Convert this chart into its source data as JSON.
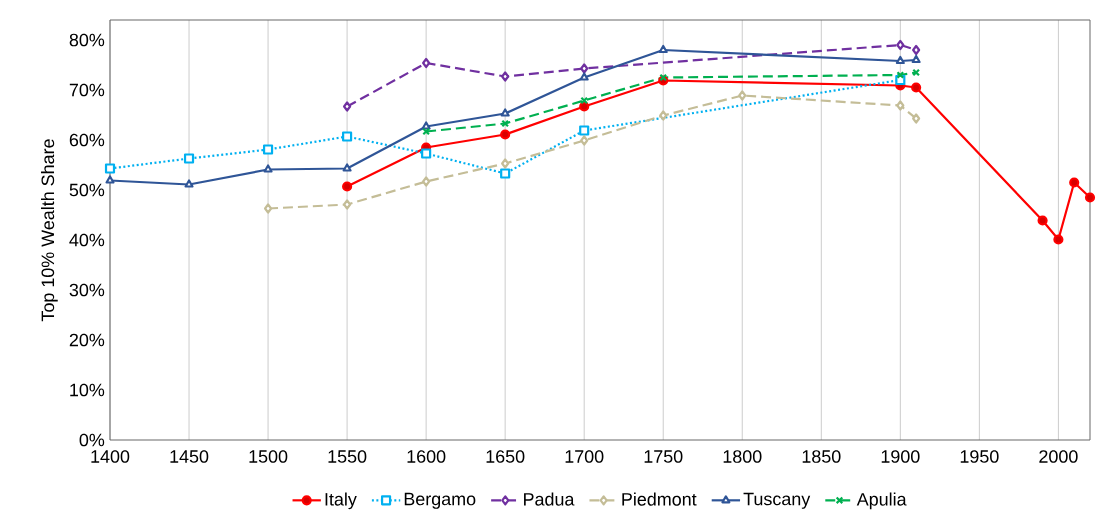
{
  "chart_data": {
    "type": "line",
    "ylabel": "Top 10% Wealth Share",
    "xlim": [
      1400,
      2020
    ],
    "xticks": [
      1400,
      1450,
      1500,
      1550,
      1600,
      1650,
      1700,
      1750,
      1800,
      1850,
      1900,
      1950,
      2000
    ],
    "ylim": [
      0,
      84
    ],
    "yticks": [
      {
        "value": 0,
        "label": "0%"
      },
      {
        "value": 10,
        "label": "10%"
      },
      {
        "value": 20,
        "label": "20%"
      },
      {
        "value": 30,
        "label": "30%"
      },
      {
        "value": 40,
        "label": "40%"
      },
      {
        "value": 50,
        "label": "50%"
      },
      {
        "value": 60,
        "label": "60%"
      },
      {
        "value": 70,
        "label": "70%"
      },
      {
        "value": 80,
        "label": "80%"
      }
    ],
    "grid": "x",
    "legend": "bottom",
    "series": [
      {
        "name": "Italy",
        "color": "#ff0000",
        "marker": "circle",
        "line_style": "solid",
        "x": [
          1550,
          1600,
          1650,
          1700,
          1750,
          1900,
          1910,
          1990,
          2000,
          2010,
          2020
        ],
        "values": [
          50.7,
          58.5,
          61.1,
          66.7,
          71.9,
          70.9,
          70.5,
          43.9,
          40.1,
          51.5,
          48.5
        ]
      },
      {
        "name": "Bergamo",
        "color": "#00b0f0",
        "marker": "square",
        "line_style": "dotted",
        "x": [
          1400,
          1450,
          1500,
          1550,
          1600,
          1650,
          1700,
          1900
        ],
        "values": [
          54.3,
          56.3,
          58.1,
          60.7,
          57.3,
          53.3,
          61.9,
          72.0
        ]
      },
      {
        "name": "Padua",
        "color": "#7030a0",
        "marker": "diamond",
        "line_style": "dashed",
        "x": [
          1550,
          1600,
          1650,
          1700,
          1900,
          1910
        ],
        "values": [
          66.7,
          75.4,
          72.7,
          74.3,
          79.0,
          78.0
        ]
      },
      {
        "name": "Piedmont",
        "color": "#c4bd97",
        "marker": "diamond",
        "line_style": "dashed",
        "x": [
          1500,
          1550,
          1600,
          1650,
          1700,
          1750,
          1800,
          1900,
          1910
        ],
        "values": [
          46.3,
          47.1,
          51.7,
          55.3,
          59.9,
          64.9,
          68.9,
          66.9,
          64.3
        ]
      },
      {
        "name": "Tuscany",
        "color": "#2f5597",
        "marker": "triangle",
        "line_style": "solid",
        "x": [
          1400,
          1450,
          1500,
          1550,
          1600,
          1650,
          1700,
          1750,
          1900,
          1910
        ],
        "values": [
          51.9,
          51.1,
          54.1,
          54.3,
          62.7,
          65.3,
          72.5,
          78.0,
          75.8,
          76.0
        ]
      },
      {
        "name": "Apulia",
        "color": "#00b050",
        "marker": "cross",
        "line_style": "dashed",
        "x": [
          1600,
          1650,
          1700,
          1750,
          1900,
          1910
        ],
        "values": [
          61.7,
          63.3,
          67.9,
          72.5,
          73.0,
          73.5
        ]
      }
    ]
  }
}
